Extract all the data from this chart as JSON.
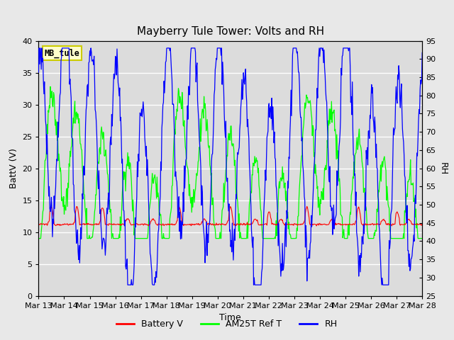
{
  "title": "Mayberry Tule Tower: Volts and RH",
  "xlabel": "Time",
  "ylabel_left": "BattV (V)",
  "ylabel_right": "RH",
  "ylim_left": [
    0,
    40
  ],
  "ylim_right": [
    25,
    95
  ],
  "yticks_left": [
    0,
    5,
    10,
    15,
    20,
    25,
    30,
    35,
    40
  ],
  "yticks_right": [
    25,
    30,
    35,
    40,
    45,
    50,
    55,
    60,
    65,
    70,
    75,
    80,
    85,
    90,
    95
  ],
  "xtick_labels": [
    "Mar 13",
    "Mar 14",
    "Mar 15",
    "Mar 16",
    "Mar 17",
    "Mar 18",
    "Mar 19",
    "Mar 20",
    "Mar 21",
    "Mar 22",
    "Mar 23",
    "Mar 24",
    "Mar 25",
    "Mar 26",
    "Mar 27",
    "Mar 28"
  ],
  "legend_labels": [
    "Battery V",
    "AM25T Ref T",
    "RH"
  ],
  "station_label": "MB_tule",
  "station_label_bg": "#ffffcc",
  "station_label_border": "#cccc00",
  "fig_bg_color": "#e8e8e8",
  "plot_bg_color": "#dcdcdc",
  "grid_color": "#ffffff",
  "title_fontsize": 11,
  "axis_fontsize": 9,
  "tick_fontsize": 8
}
